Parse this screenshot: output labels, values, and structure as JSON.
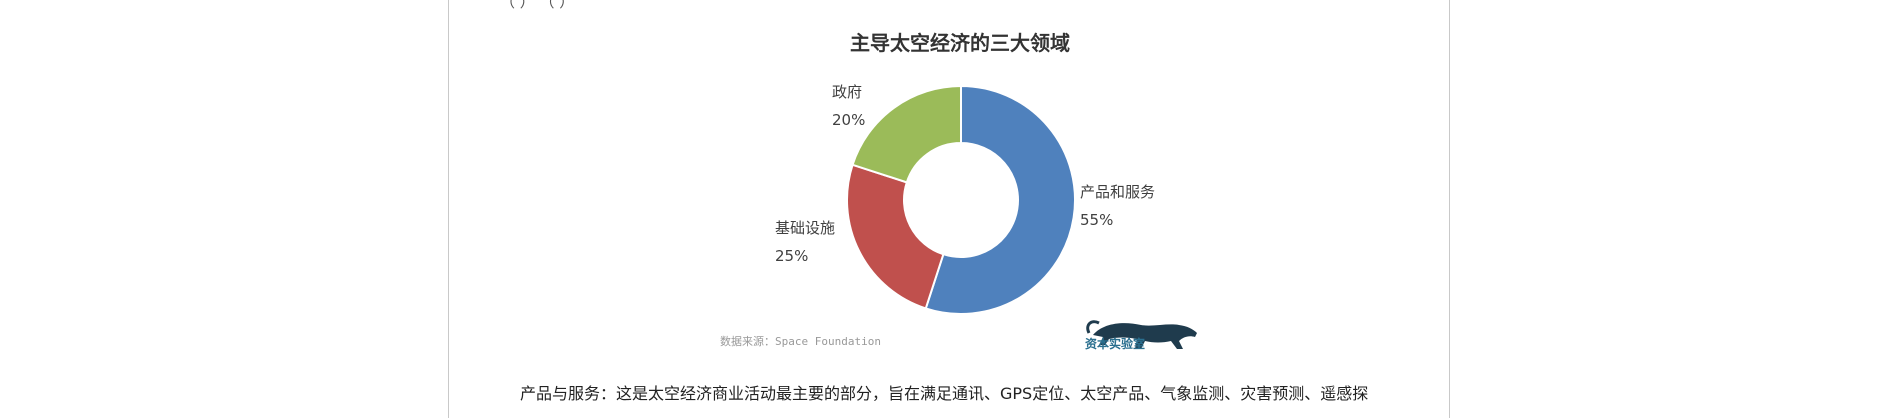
{
  "document": {
    "clipped_top_text": "（            ）           （       ）",
    "body_paragraph": "产品与服务：这是太空经济商业活动最主要的部分，旨在满足通讯、GPS定位、太空产品、气象监测、灾害预测、遥感探"
  },
  "chart_data": {
    "type": "pie",
    "title": "主导太空经济的三大领域",
    "slices": [
      {
        "label": "产品和服务",
        "value": 55,
        "display": "55%",
        "color": "#4f81bd"
      },
      {
        "label": "基础设施",
        "value": 25,
        "display": "25%",
        "color": "#c0504d"
      },
      {
        "label": "政府",
        "value": 20,
        "display": "20%",
        "color": "#9bbb59"
      }
    ],
    "source": "数据来源：Space Foundation",
    "logo_text": "资本实验室"
  }
}
